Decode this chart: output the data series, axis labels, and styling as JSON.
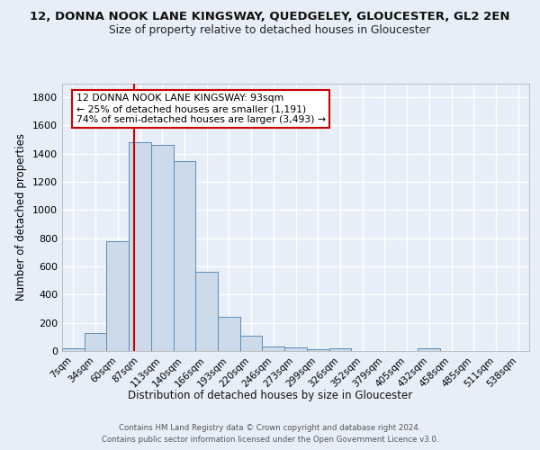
{
  "title1": "12, DONNA NOOK LANE KINGSWAY, QUEDGELEY, GLOUCESTER, GL2 2EN",
  "title2": "Size of property relative to detached houses in Gloucester",
  "xlabel": "Distribution of detached houses by size in Gloucester",
  "ylabel": "Number of detached properties",
  "bin_labels": [
    "7sqm",
    "34sqm",
    "60sqm",
    "87sqm",
    "113sqm",
    "140sqm",
    "166sqm",
    "193sqm",
    "220sqm",
    "246sqm",
    "273sqm",
    "299sqm",
    "326sqm",
    "352sqm",
    "379sqm",
    "405sqm",
    "432sqm",
    "458sqm",
    "485sqm",
    "511sqm",
    "538sqm"
  ],
  "bar_heights": [
    20,
    130,
    780,
    1480,
    1460,
    1350,
    560,
    245,
    110,
    35,
    25,
    10,
    20,
    0,
    0,
    0,
    20,
    0,
    0,
    0,
    0
  ],
  "bar_color": "#ccdaea",
  "bar_edge_color": "#5b8db8",
  "background_color": "#e8eef8",
  "fig_background_color": "#e8eef8",
  "grid_color": "#ffffff",
  "red_line_color": "#cc0000",
  "annotation_line1": "12 DONNA NOOK LANE KINGSWAY: 93sqm",
  "annotation_line2": "← 25% of detached houses are smaller (1,191)",
  "annotation_line3": "74% of semi-detached houses are larger (3,493) →",
  "annotation_box_color": "#ffffff",
  "annotation_box_edge": "#cc0000",
  "footer1": "Contains HM Land Registry data © Crown copyright and database right 2024.",
  "footer2": "Contains public sector information licensed under the Open Government Licence v3.0.",
  "ylim": [
    0,
    1900
  ],
  "yticks": [
    0,
    200,
    400,
    600,
    800,
    1000,
    1200,
    1400,
    1600,
    1800
  ]
}
